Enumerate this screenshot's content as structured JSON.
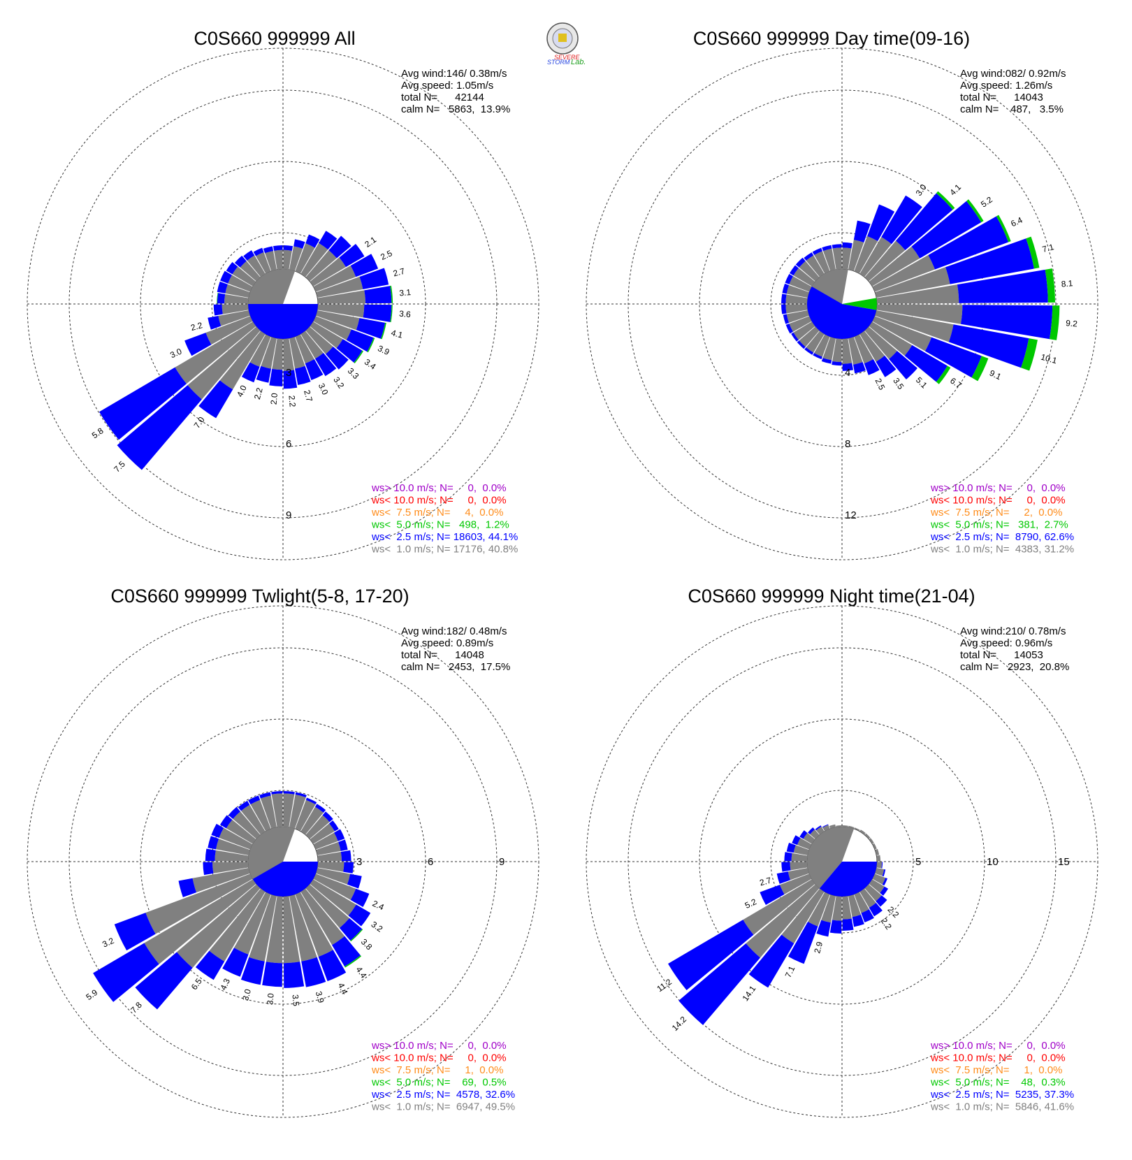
{
  "logo": {
    "text1": "SEVERE",
    "text2": "STORM",
    "text3": "Lab."
  },
  "colors": {
    "gt10": "#a000c8",
    "lt10": "#ff0000",
    "lt7_5": "#ff8c1a",
    "lt5": "#00c800",
    "lt2_5": "#0000ff",
    "lt1": "#808080"
  },
  "chart_data": [
    {
      "type": "windrose",
      "title": "C0S660 999999 All",
      "stats": {
        "avg_wind": "Avg wind:146/ 0.38m/s",
        "avg_speed": "Avg speed: 1.05m/s",
        "total": "total N=      42144",
        "calm": "calm N=   5863,  13.9%"
      },
      "ring_labels": [
        "3",
        "6",
        "9"
      ],
      "ring_max": 9,
      "legend": [
        "ws> 10.0 m/s; N=     0,  0.0%",
        "ws< 10.0 m/s; N=     0,  0.0%",
        "ws<  7.5 m/s; N=     4,  0.0%",
        "ws<  5.0 m/s; N=   498,  1.2%",
        "ws<  2.5 m/s; N= 18603, 44.1%",
        "ws<  1.0 m/s; N= 17176, 40.8%"
      ],
      "calm_pie": {
        "gray_from": -150,
        "gray_to": 20,
        "blue_from": 90,
        "blue_to": 270,
        "green_from": 0,
        "green_to": 0
      },
      "directions": [
        5,
        15,
        25,
        35,
        45,
        55,
        65,
        75,
        85,
        95,
        105,
        115,
        125,
        135,
        145,
        155,
        165,
        175,
        185,
        195,
        205,
        215,
        225,
        235,
        245,
        255,
        265,
        275,
        285,
        295,
        305,
        315,
        325,
        335,
        345,
        355
      ],
      "bars": [
        [
          0.8,
          0.2,
          0
        ],
        [
          1.0,
          0.3,
          0
        ],
        [
          1.25,
          0.4,
          0
        ],
        [
          1.5,
          0.6,
          0
        ],
        [
          1.5,
          0.8,
          0
        ],
        [
          1.6,
          0.9,
          0
        ],
        [
          1.8,
          1.0,
          0
        ],
        [
          1.95,
          1.1,
          0
        ],
        [
          2.0,
          1.1,
          0.05
        ],
        [
          1.95,
          1.15,
          0.04
        ],
        [
          1.8,
          1.1,
          0.05
        ],
        [
          1.6,
          1.0,
          0.05
        ],
        [
          1.45,
          0.95,
          0.05
        ],
        [
          1.3,
          0.85,
          0
        ],
        [
          1.2,
          0.85,
          0
        ],
        [
          1.2,
          0.75,
          0
        ],
        [
          1.3,
          0.7,
          0
        ],
        [
          1.35,
          0.75,
          0
        ],
        [
          1.3,
          0.7,
          0
        ],
        [
          1.3,
          0.6,
          0
        ],
        [
          1.35,
          0.7,
          0
        ],
        [
          2.7,
          1.4,
          0
        ],
        [
          3.8,
          3.9,
          0
        ],
        [
          3.8,
          3.7,
          0
        ],
        [
          2.0,
          0.95,
          0
        ],
        [
          1.3,
          0.45,
          0
        ],
        [
          1.1,
          0.35,
          0
        ],
        [
          1.0,
          0.3,
          0.02
        ],
        [
          1.0,
          0.35,
          0
        ],
        [
          1.0,
          0.35,
          0
        ],
        [
          1.0,
          0.3,
          0
        ],
        [
          0.9,
          0.3,
          0
        ],
        [
          0.9,
          0.25,
          0
        ],
        [
          0.85,
          0.2,
          0
        ],
        [
          0.8,
          0.2,
          0
        ],
        [
          0.8,
          0.2,
          0
        ]
      ],
      "bar_labels": {
        "55": "2.1",
        "65": "2.5",
        "75": "2.7",
        "85": "3.1",
        "95": "3.6",
        "105": "4.1",
        "115": "3.9",
        "125": "3.4",
        "135": "3.3",
        "145": "3.2",
        "155": "3.0",
        "165": "2.7",
        "175": "2.2",
        "185": "2.0",
        "195": "2.2",
        "205": "4.0",
        "215": "7.0",
        "225": "7.5",
        "235": "5.8",
        "245": "3.0",
        "255": "2.2"
      }
    },
    {
      "type": "windrose",
      "title": "C0S660 999999 Day time(09-16)",
      "stats": {
        "avg_wind": "Avg wind:082/ 0.92m/s",
        "avg_speed": "Avg speed: 1.26m/s",
        "total": "total N=      14043",
        "calm": "calm N=    487,   3.5%"
      },
      "ring_labels": [
        "4",
        "8",
        "12"
      ],
      "ring_max": 12,
      "legend": [
        "ws> 10.0 m/s; N=     0,  0.0%",
        "ws< 10.0 m/s; N=     0,  0.0%",
        "ws<  7.5 m/s; N=     2,  0.0%",
        "ws<  5.0 m/s; N=   381,  2.7%",
        "ws<  2.5 m/s; N=  8790, 62.6%",
        "ws<  1.0 m/s; N=  4383, 31.2%"
      ],
      "calm_pie": {
        "gray_from": -165,
        "gray_to": 10,
        "blue_from": 100,
        "blue_to": 300,
        "green_from": 80,
        "green_to": 100
      },
      "directions": [
        5,
        15,
        25,
        35,
        45,
        55,
        65,
        75,
        85,
        95,
        105,
        115,
        125,
        135,
        145,
        155,
        165,
        175,
        185,
        195,
        205,
        215,
        225,
        235,
        245,
        255,
        265,
        275,
        285,
        295,
        305,
        315,
        325,
        335,
        345,
        355
      ],
      "bars": [
        [
          1.2,
          0.3,
          0
        ],
        [
          1.7,
          1.1,
          0
        ],
        [
          2.1,
          1.9,
          0
        ],
        [
          2.4,
          2.7,
          0
        ],
        [
          2.7,
          3.5,
          0.15
        ],
        [
          3.1,
          4.0,
          0.15
        ],
        [
          3.6,
          4.4,
          0.15
        ],
        [
          4.2,
          4.8,
          0.3
        ],
        [
          4.6,
          5.0,
          0.4
        ],
        [
          4.8,
          5.05,
          0.4
        ],
        [
          4.4,
          4.3,
          0.5
        ],
        [
          3.4,
          3.0,
          0.4
        ],
        [
          2.6,
          2.3,
          0.2
        ],
        [
          2.1,
          1.5,
          0
        ],
        [
          1.8,
          1.0,
          0
        ],
        [
          1.6,
          0.7,
          0
        ],
        [
          1.5,
          0.5,
          0
        ],
        [
          1.4,
          0.4,
          0
        ],
        [
          1.3,
          0.2,
          0
        ],
        [
          1.25,
          0.2,
          0
        ],
        [
          1.2,
          0.15,
          0
        ],
        [
          1.2,
          0.15,
          0
        ],
        [
          1.2,
          0.15,
          0
        ],
        [
          1.2,
          0.15,
          0
        ],
        [
          1.2,
          0.2,
          0
        ],
        [
          1.2,
          0.2,
          0
        ],
        [
          1.2,
          0.25,
          0
        ],
        [
          1.2,
          0.25,
          0
        ],
        [
          1.2,
          0.25,
          0
        ],
        [
          1.2,
          0.25,
          0
        ],
        [
          1.2,
          0.25,
          0
        ],
        [
          1.2,
          0.25,
          0
        ],
        [
          1.2,
          0.2,
          0
        ],
        [
          1.2,
          0.2,
          0
        ],
        [
          1.2,
          0.2,
          0
        ],
        [
          1.2,
          0.2,
          0
        ]
      ],
      "bar_labels": {
        "35": "3.0",
        "45": "4.1",
        "55": "5.2",
        "65": "6.4",
        "75": "7.1",
        "85": "8.1",
        "95": "9.2",
        "105": "10.1",
        "115": "9.1",
        "125": "6.7",
        "135": "5.1",
        "145": "3.5",
        "155": "2.5"
      }
    },
    {
      "type": "windrose",
      "title": "C0S660 999999 Twlight(5-8, 17-20)",
      "stats": {
        "avg_wind": "Avg wind:182/ 0.48m/s",
        "avg_speed": "Avg speed: 0.89m/s",
        "total": "total N=      14048",
        "calm": "calm N=   2453,  17.5%"
      },
      "ring_labels": [
        "3",
        "6",
        "9"
      ],
      "ring_max": 9,
      "legend": [
        "ws> 10.0 m/s; N=     0,  0.0%",
        "ws< 10.0 m/s; N=     0,  0.0%",
        "ws<  7.5 m/s; N=     1,  0.0%",
        "ws<  5.0 m/s; N=    69,  0.5%",
        "ws<  2.5 m/s; N=  4578, 32.6%",
        "ws<  1.0 m/s; N=  6947, 49.5%"
      ],
      "calm_pie": {
        "gray_from": -150,
        "gray_to": 20,
        "blue_from": 90,
        "blue_to": 240,
        "green_from": 0,
        "green_to": 0
      },
      "directions": [
        5,
        15,
        25,
        35,
        45,
        55,
        65,
        75,
        85,
        95,
        105,
        115,
        125,
        135,
        145,
        155,
        165,
        175,
        185,
        195,
        205,
        215,
        225,
        235,
        245,
        255,
        265,
        275,
        285,
        295,
        305,
        315,
        325,
        335,
        345,
        355
      ],
      "bars": [
        [
          1.4,
          0.1,
          0
        ],
        [
          1.4,
          0.1,
          0
        ],
        [
          1.3,
          0.1,
          0
        ],
        [
          1.2,
          0.15,
          0
        ],
        [
          1.1,
          0.2,
          0
        ],
        [
          1.05,
          0.2,
          0
        ],
        [
          1.0,
          0.3,
          0
        ],
        [
          1.0,
          0.3,
          0
        ],
        [
          1.0,
          0.4,
          0
        ],
        [
          1.1,
          0.4,
          0
        ],
        [
          1.4,
          0.5,
          0
        ],
        [
          1.8,
          0.6,
          0
        ],
        [
          2.1,
          0.7,
          0
        ],
        [
          2.2,
          0.7,
          0.04
        ],
        [
          2.6,
          1.05,
          0.05
        ],
        [
          2.8,
          1.1,
          0
        ],
        [
          2.8,
          1.1,
          0
        ],
        [
          2.8,
          1.05,
          0
        ],
        [
          2.8,
          1.0,
          0
        ],
        [
          2.8,
          1.0,
          0
        ],
        [
          2.7,
          1.0,
          0
        ],
        [
          3.4,
          0.9,
          0
        ],
        [
          4.4,
          2.3,
          0
        ],
        [
          5.3,
          2.5,
          0
        ],
        [
          4.7,
          1.4,
          0
        ],
        [
          2.4,
          0.6,
          0
        ],
        [
          1.5,
          0.4,
          0
        ],
        [
          1.4,
          0.4,
          0
        ],
        [
          1.4,
          0.35,
          0
        ],
        [
          1.4,
          0.35,
          0
        ],
        [
          1.3,
          0.3,
          0
        ],
        [
          1.3,
          0.25,
          0
        ],
        [
          1.3,
          0.2,
          0
        ],
        [
          1.3,
          0.2,
          0
        ],
        [
          1.35,
          0.15,
          0
        ],
        [
          1.4,
          0.1,
          0
        ]
      ],
      "bar_labels": {
        "115": "2.4",
        "125": "3.2",
        "135": "3.8",
        "145": "4.4",
        "155": "4.4",
        "165": "3.9",
        "175": "3.5",
        "185": "3.0",
        "195": "3.0",
        "205": "4.3",
        "215": "6.5",
        "225": "7.8",
        "235": "5.9",
        "245": "3.2"
      }
    },
    {
      "type": "windrose",
      "title": "C0S660 999999 Night time(21-04)",
      "stats": {
        "avg_wind": "Avg wind:210/ 0.78m/s",
        "avg_speed": "Avg speed: 0.96m/s",
        "total": "total N=      14053",
        "calm": "calm N=   2923,  20.8%"
      },
      "ring_labels": [
        "5",
        "10",
        "15"
      ],
      "ring_max": 15,
      "legend": [
        "ws> 10.0 m/s; N=     0,  0.0%",
        "ws< 10.0 m/s; N=     0,  0.0%",
        "ws<  7.5 m/s; N=     1,  0.0%",
        "ws<  5.0 m/s; N=    48,  0.3%",
        "ws<  2.5 m/s; N=  5235, 37.3%",
        "ws<  1.0 m/s; N=  5846, 41.6%"
      ],
      "calm_pie": {
        "gray_from": -140,
        "gray_to": 20,
        "blue_from": 90,
        "blue_to": 220,
        "green_from": 0,
        "green_to": 0
      },
      "directions": [
        5,
        15,
        25,
        35,
        45,
        55,
        65,
        75,
        85,
        95,
        105,
        115,
        125,
        135,
        145,
        155,
        165,
        175,
        185,
        195,
        205,
        215,
        225,
        235,
        245,
        255,
        265,
        275,
        285,
        295,
        305,
        315,
        325,
        335,
        345,
        355
      ],
      "bars": [
        [
          0.1,
          0,
          0
        ],
        [
          0.1,
          0,
          0
        ],
        [
          0.1,
          0,
          0
        ],
        [
          0.15,
          0,
          0
        ],
        [
          0.15,
          0,
          0
        ],
        [
          0.15,
          0,
          0
        ],
        [
          0.15,
          0,
          0
        ],
        [
          0.2,
          0,
          0
        ],
        [
          0.25,
          0,
          0
        ],
        [
          0.35,
          0.05,
          0
        ],
        [
          0.55,
          0.1,
          0
        ],
        [
          0.8,
          0.15,
          0
        ],
        [
          1.0,
          0.3,
          0
        ],
        [
          1.2,
          0.5,
          0
        ],
        [
          1.3,
          0.7,
          0
        ],
        [
          1.4,
          0.7,
          0
        ],
        [
          1.5,
          0.7,
          0
        ],
        [
          1.6,
          0.8,
          0
        ],
        [
          1.7,
          0.9,
          0
        ],
        [
          1.9,
          1.0,
          0
        ],
        [
          2.4,
          2.8,
          0
        ],
        [
          4.2,
          3.6,
          0
        ],
        [
          6.4,
          6.2,
          0
        ],
        [
          5.6,
          6.1,
          0
        ],
        [
          2.2,
          1.5,
          0
        ],
        [
          1.4,
          0.8,
          0
        ],
        [
          1.2,
          0.6,
          0
        ],
        [
          1.1,
          0.5,
          0
        ],
        [
          1.0,
          0.5,
          0
        ],
        [
          0.9,
          0.4,
          0
        ],
        [
          0.7,
          0.3,
          0
        ],
        [
          0.5,
          0.2,
          0
        ],
        [
          0.4,
          0.1,
          0
        ],
        [
          0.3,
          0.05,
          0
        ],
        [
          0.2,
          0,
          0
        ],
        [
          0.1,
          0,
          0
        ]
      ],
      "bar_labels": {
        "135": "2.2",
        "145": "2.2",
        "195": "2.9",
        "205": "7.1",
        "215": "14.1",
        "225": "14.2",
        "235": "11.2",
        "245": "5.2",
        "255": "2.7"
      }
    }
  ]
}
